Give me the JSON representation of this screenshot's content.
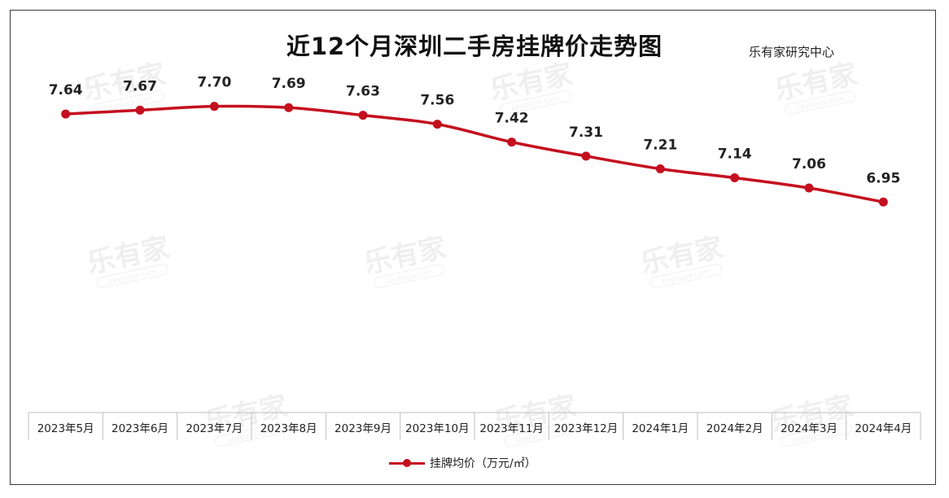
{
  "source_label": "乐有家研究中心",
  "watermark": {
    "text": "乐有家",
    "subtext": "Leyoujia.com"
  },
  "colors": {
    "line": "#c40f1e",
    "axis": "#bfbfbf",
    "text": "#222222"
  },
  "chart_data": {
    "type": "line",
    "title": "近12个月深圳二手房挂牌价走势图",
    "categories": [
      "2023年5月",
      "2023年6月",
      "2023年7月",
      "2023年8月",
      "2023年9月",
      "2023年10月",
      "2023年11月",
      "2023年12月",
      "2024年1月",
      "2024年2月",
      "2024年3月",
      "2024年4月"
    ],
    "series": [
      {
        "name": "挂牌均价（万元/㎡）",
        "values": [
          7.64,
          7.67,
          7.7,
          7.69,
          7.63,
          7.56,
          7.42,
          7.31,
          7.21,
          7.14,
          7.06,
          6.95
        ]
      }
    ],
    "data_labels": [
      "7.64",
      "7.67",
      "7.70",
      "7.69",
      "7.63",
      "7.56",
      "7.42",
      "7.31",
      "7.21",
      "7.14",
      "7.06",
      "6.95"
    ],
    "xlabel": "",
    "ylabel": "",
    "ylim": [
      5.3,
      7.8
    ],
    "grid": false,
    "legend_position": "bottom"
  }
}
